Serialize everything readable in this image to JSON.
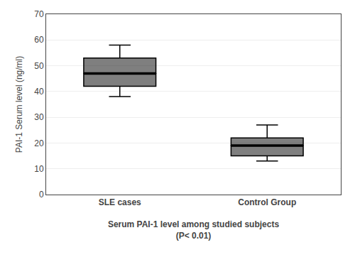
{
  "chart_data": {
    "type": "box",
    "categories": [
      "SLE cases",
      "Control Group"
    ],
    "whisker_low": [
      38,
      13
    ],
    "q1": [
      42,
      15
    ],
    "median": [
      47,
      19
    ],
    "q3": [
      53,
      22
    ],
    "whisker_high": [
      58,
      27
    ],
    "xlabel": [
      "Serum PAI-1 level among studied subjects",
      "(P< 0.01)"
    ],
    "ylabel": "PAI-1 Serum level (ng/ml)",
    "ylim": [
      0,
      70
    ],
    "yticks": [
      0,
      10,
      20,
      30,
      40,
      50,
      60,
      70
    ],
    "grid": true
  }
}
